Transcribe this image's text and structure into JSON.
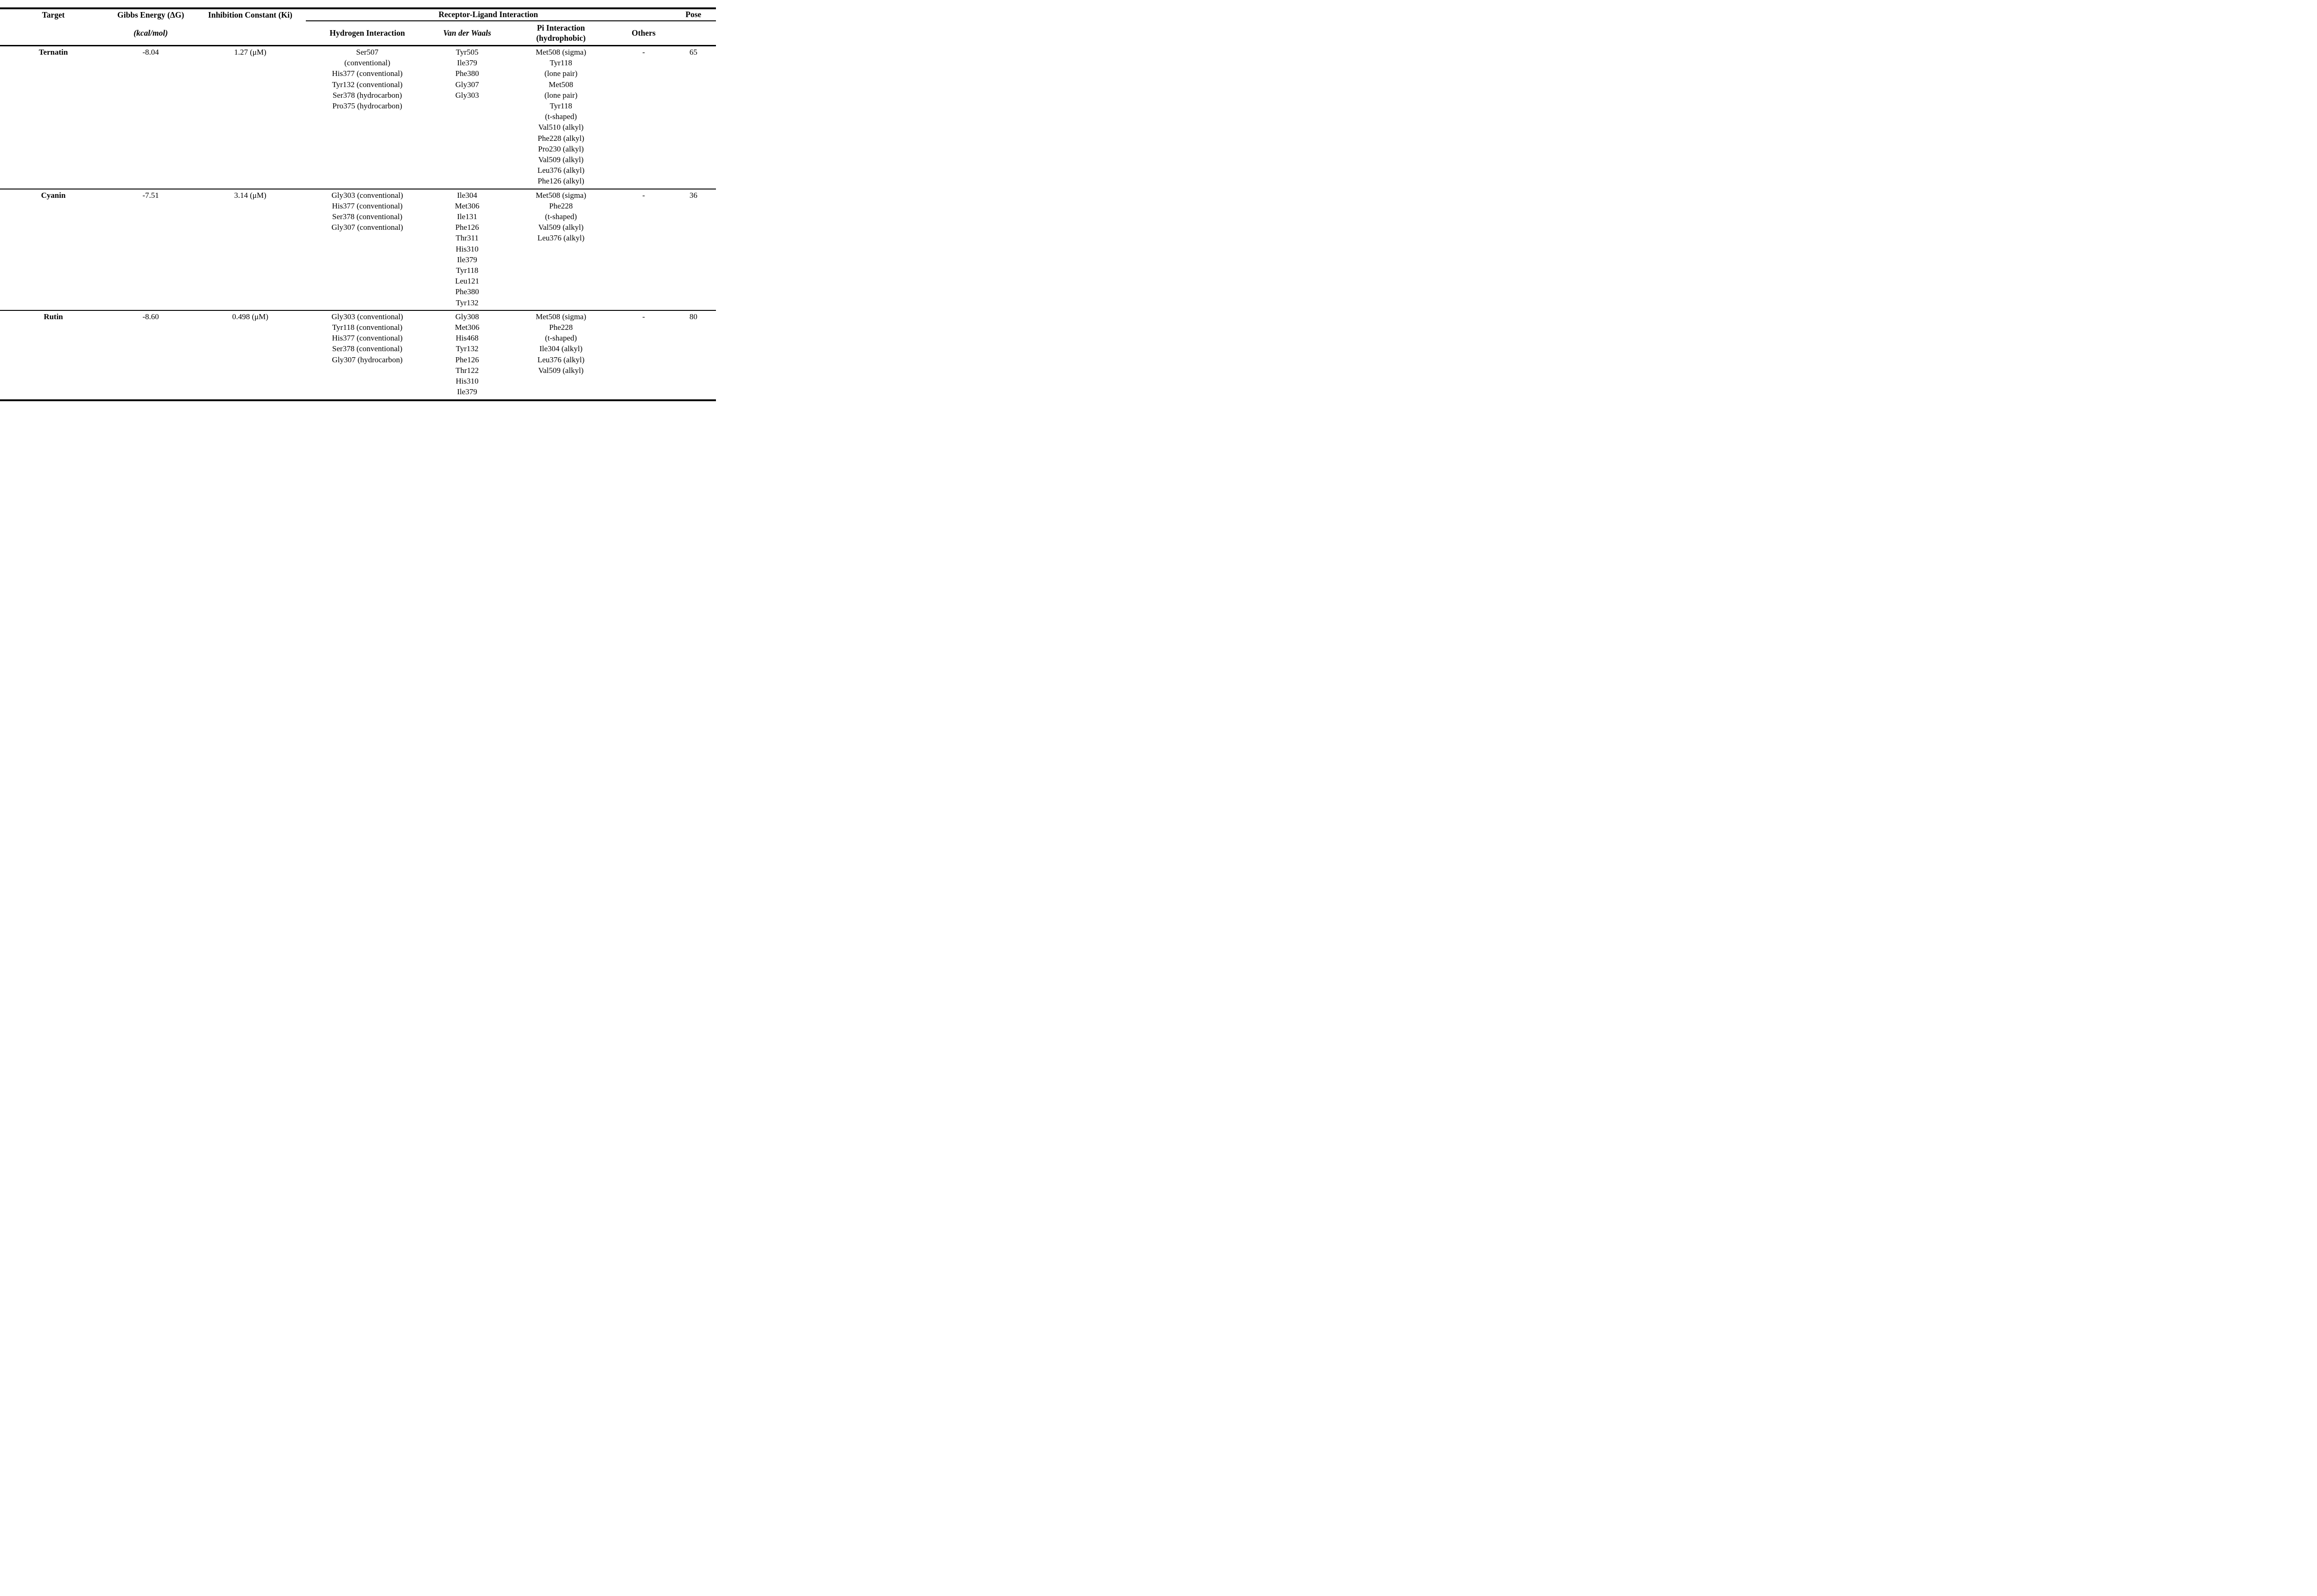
{
  "table": {
    "header": {
      "target": "Target",
      "gibbs_line1": "Gibbs Energy (ΔG)",
      "gibbs_line2": "(kcal/mol)",
      "ki": "Inhibition Constant (Ki)",
      "receptor_ligand": "Receptor-Ligand Interaction",
      "pose": "Pose",
      "sub": {
        "hydrogen": "Hydrogen Interaction",
        "vdw": "Van der Waals",
        "pi_line1": "Pi Interaction",
        "pi_line2": "(hydrophobic)",
        "others": "Others"
      }
    },
    "rows": [
      {
        "target": "Ternatin",
        "gibbs": "-8.04",
        "ki": "1.27 (μM)",
        "hydrogen": [
          "Ser507",
          "(conventional)",
          "His377 (conventional)",
          "Tyr132 (conventional)",
          "Ser378 (hydrocarbon)",
          "Pro375 (hydrocarbon)"
        ],
        "vdw": [
          "Tyr505",
          "Ile379",
          "Phe380",
          "Gly307",
          "Gly303"
        ],
        "pi": [
          "Met508 (sigma)",
          "Tyr118",
          "(lone pair)",
          "Met508",
          "(lone pair)",
          "Tyr118",
          "(t-shaped)",
          "Val510 (alkyl)",
          "Phe228 (alkyl)",
          "Pro230 (alkyl)",
          "Val509 (alkyl)",
          "Leu376 (alkyl)",
          "Phe126 (alkyl)"
        ],
        "others": "-",
        "pose": "65"
      },
      {
        "target": "Cyanin",
        "gibbs": "-7.51",
        "ki": "3.14 (μM)",
        "hydrogen": [
          "Gly303 (conventional)",
          "His377 (conventional)",
          "Ser378 (conventional)",
          "Gly307 (conventional)"
        ],
        "vdw": [
          "Ile304",
          "Met306",
          "Ile131",
          "Phe126",
          "Thr311",
          "His310",
          "Ile379",
          "Tyr118",
          "Leu121",
          "Phe380",
          "Tyr132"
        ],
        "pi": [
          "Met508 (sigma)",
          "Phe228",
          "(t-shaped)",
          "Val509 (alkyl)",
          "Leu376 (alkyl)"
        ],
        "others": "-",
        "pose": "36"
      },
      {
        "target": "Rutin",
        "gibbs": "-8.60",
        "ki": "0.498 (μM)",
        "hydrogen": [
          "Gly303 (conventional)",
          "Tyr118 (conventional)",
          "His377 (conventional)",
          "Ser378 (conventional)",
          "Gly307 (hydrocarbon)"
        ],
        "vdw": [
          "Gly308",
          "Met306",
          "His468",
          "Tyr132",
          "Phe126",
          "Thr122",
          "His310",
          "Ile379"
        ],
        "pi": [
          "Met508 (sigma)",
          "Phe228",
          "(t-shaped)",
          "Ile304 (alkyl)",
          "Leu376 (alkyl)",
          "Val509 (alkyl)"
        ],
        "others": "-",
        "pose": "80"
      }
    ]
  }
}
